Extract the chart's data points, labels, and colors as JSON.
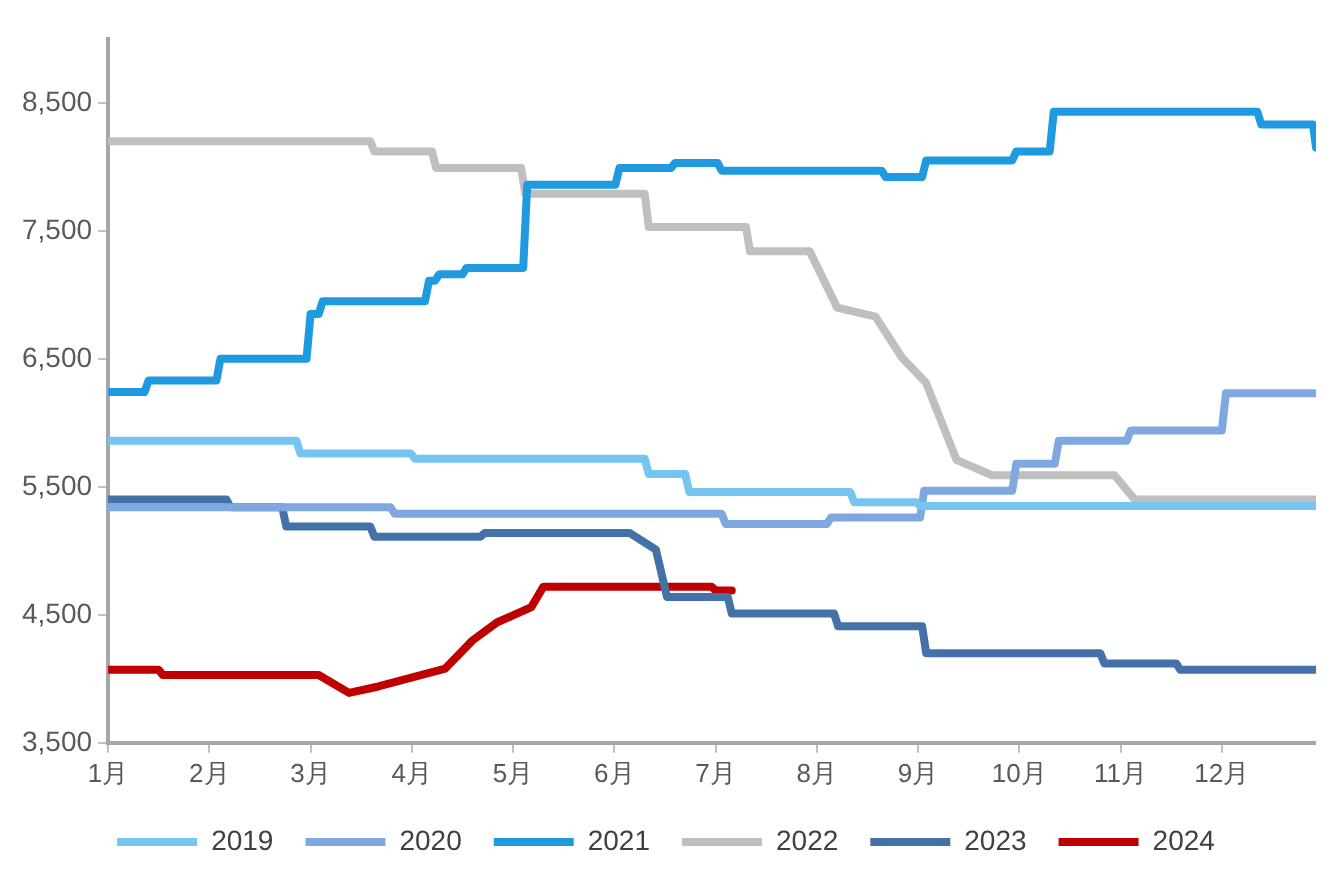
{
  "chart_data": {
    "type": "line",
    "xlim": [
      1,
      12.93
    ],
    "xticks": [
      {
        "value": 1,
        "label": "1月"
      },
      {
        "value": 2,
        "label": "2月"
      },
      {
        "value": 3,
        "label": "3月"
      },
      {
        "value": 4,
        "label": "4月"
      },
      {
        "value": 5,
        "label": "5月"
      },
      {
        "value": 6,
        "label": "6月"
      },
      {
        "value": 7,
        "label": "7月"
      },
      {
        "value": 8,
        "label": "8月"
      },
      {
        "value": 9,
        "label": "9月"
      },
      {
        "value": 10,
        "label": "10月"
      },
      {
        "value": 11,
        "label": "11月"
      },
      {
        "value": 12,
        "label": "12月"
      }
    ],
    "ylim": [
      3500,
      9000
    ],
    "yticks": [
      {
        "value": 3500,
        "label": "3,500"
      },
      {
        "value": 4500,
        "label": "4,500"
      },
      {
        "value": 5500,
        "label": "5,500"
      },
      {
        "value": 6500,
        "label": "6,500"
      },
      {
        "value": 7500,
        "label": "7,500"
      },
      {
        "value": 8500,
        "label": "8,500"
      }
    ],
    "grid": false,
    "legend": "bottom",
    "marker": "none",
    "line_style": "solid",
    "series": [
      {
        "name": "2019",
        "color": "#75c5f0",
        "x": [
          1,
          2.86,
          2.9,
          3.99,
          4.03,
          6.3,
          6.34,
          6.7,
          6.74,
          8.33,
          8.37,
          8.98,
          9.02,
          12.93
        ],
        "values": [
          5860,
          5860,
          5760,
          5760,
          5720,
          5720,
          5600,
          5600,
          5460,
          5460,
          5380,
          5380,
          5350,
          5350
        ]
      },
      {
        "name": "2020",
        "color": "#7fa8e0",
        "x": [
          1,
          3.79,
          3.83,
          7.06,
          7.1,
          8.1,
          8.14,
          9.02,
          9.06,
          9.93,
          9.97,
          10.35,
          10.39,
          11.06,
          11.1,
          12.0,
          12.04,
          12.93
        ],
        "values": [
          5340,
          5340,
          5290,
          5290,
          5210,
          5210,
          5260,
          5260,
          5470,
          5470,
          5680,
          5680,
          5860,
          5860,
          5940,
          5940,
          6230,
          6230
        ]
      },
      {
        "name": "2021",
        "color": "#1f9ae0",
        "x": [
          1,
          1.36,
          1.4,
          2.07,
          2.11,
          2.96,
          3.0,
          3.08,
          3.12,
          4.13,
          4.17,
          4.23,
          4.27,
          4.5,
          4.54,
          5.1,
          5.14,
          6.01,
          6.05,
          6.56,
          6.6,
          7.02,
          7.06,
          8.64,
          8.68,
          9.04,
          9.08,
          9.93,
          9.97,
          10.3,
          10.34,
          12.35,
          12.39,
          12.9,
          12.93
        ],
        "values": [
          6240,
          6240,
          6330,
          6330,
          6500,
          6500,
          6850,
          6850,
          6950,
          6950,
          7110,
          7110,
          7160,
          7160,
          7210,
          7210,
          7860,
          7860,
          7990,
          7990,
          8030,
          8030,
          7970,
          7970,
          7920,
          7920,
          8050,
          8050,
          8120,
          8120,
          8430,
          8430,
          8330,
          8330,
          8150
        ]
      },
      {
        "name": "2022",
        "color": "#bfbfbf",
        "x": [
          1,
          3.59,
          3.63,
          4.2,
          4.24,
          5.08,
          5.12,
          6.3,
          6.34,
          7.3,
          7.34,
          7.93,
          8.2,
          8.58,
          8.84,
          9.08,
          9.38,
          9.73,
          10.94,
          11.14,
          12.93
        ],
        "values": [
          8200,
          8200,
          8120,
          8120,
          7990,
          7990,
          7790,
          7790,
          7530,
          7530,
          7340,
          7340,
          6900,
          6830,
          6510,
          6310,
          5710,
          5590,
          5590,
          5400,
          5400
        ]
      },
      {
        "name": "2023",
        "color": "#4472a8",
        "x": [
          1,
          2.17,
          2.21,
          2.72,
          2.76,
          3.59,
          3.63,
          4.68,
          4.72,
          6.15,
          6.41,
          6.52,
          7.12,
          7.16,
          8.17,
          8.21,
          9.04,
          9.08,
          10.8,
          10.84,
          11.55,
          11.59,
          12.93
        ],
        "values": [
          5400,
          5400,
          5340,
          5340,
          5190,
          5190,
          5110,
          5110,
          5140,
          5140,
          5010,
          4640,
          4640,
          4510,
          4510,
          4410,
          4410,
          4200,
          4200,
          4120,
          4120,
          4070,
          4070
        ]
      },
      {
        "name": "2024",
        "color": "#c00000",
        "x": [
          1,
          1.5,
          1.54,
          3.08,
          3.38,
          3.67,
          4.33,
          4.6,
          4.84,
          5.18,
          5.3,
          6.96,
          7.0,
          7.16
        ],
        "values": [
          4070,
          4070,
          4030,
          4030,
          3890,
          3940,
          4080,
          4300,
          4440,
          4560,
          4720,
          4720,
          4690,
          4690
        ]
      }
    ]
  }
}
